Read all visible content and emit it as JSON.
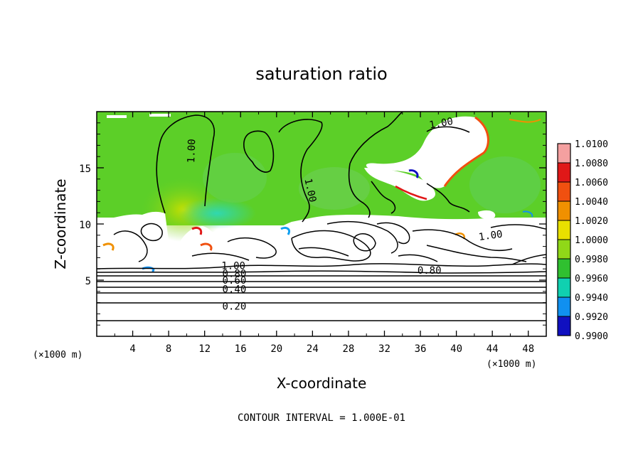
{
  "chart_data": {
    "type": "heatmap",
    "title": "saturation ratio",
    "xlabel": "X-coordinate",
    "ylabel": "Z-coordinate",
    "x_unit": "(×1000 m)",
    "z_unit": "(×1000 m)",
    "xlim": [
      0,
      50
    ],
    "ylim": [
      0,
      20
    ],
    "x_ticks": [
      4,
      8,
      12,
      16,
      20,
      24,
      28,
      32,
      36,
      40,
      44,
      48
    ],
    "y_ticks": [
      5,
      10,
      15
    ],
    "colorbar": {
      "levels": [
        "1.0100",
        "1.0080",
        "1.0060",
        "1.0040",
        "1.0020",
        "1.0000",
        "0.9980",
        "0.9960",
        "0.9940",
        "0.9920",
        "0.9900"
      ],
      "colors": [
        "#f4a0a0",
        "#e01818",
        "#f05010",
        "#f09000",
        "#e8e000",
        "#90d818",
        "#30c030",
        "#10d0b0",
        "#1090f0",
        "#1010c0",
        "#6010a0"
      ]
    },
    "contour_interval_text": "CONTOUR INTERVAL = 1.000E-01",
    "contour_labels": [
      {
        "text": "1.00",
        "x": 10.5,
        "z": 16.5,
        "rotate": -88
      },
      {
        "text": "1.00",
        "x": 23.8,
        "z": 13.0,
        "rotate": 78
      },
      {
        "text": "1.00",
        "x": 38.3,
        "z": 19.0,
        "rotate": -10
      },
      {
        "text": "1.00",
        "x": 43.8,
        "z": 9.0,
        "rotate": -8
      },
      {
        "text": "1.00",
        "x": 15.2,
        "z": 6.3,
        "rotate": 0
      },
      {
        "text": "0.80",
        "x": 15.3,
        "z": 5.6,
        "rotate": 0
      },
      {
        "text": "0.60",
        "x": 15.3,
        "z": 5.0,
        "rotate": 0
      },
      {
        "text": "0.40",
        "x": 15.3,
        "z": 4.2,
        "rotate": 0
      },
      {
        "text": "0.80",
        "x": 37.0,
        "z": 5.9,
        "rotate": 0
      },
      {
        "text": "0.20",
        "x": 15.3,
        "z": 2.7,
        "rotate": 0
      }
    ]
  }
}
